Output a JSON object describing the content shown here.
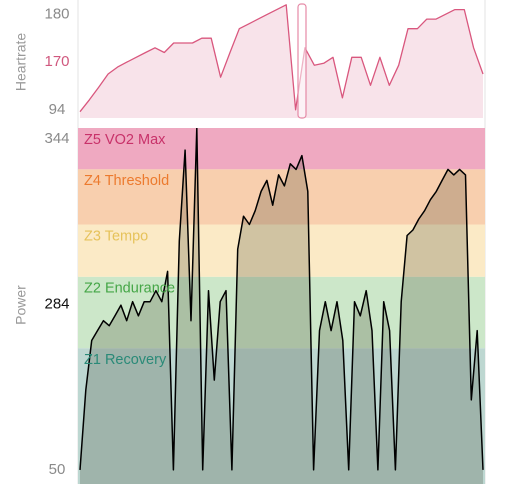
{
  "chart_data": [
    {
      "type": "area",
      "ylabel": "Heartrate",
      "scale": "piecewise",
      "ylim": [
        81,
        183
      ],
      "yticks": [
        94,
        170,
        180
      ],
      "grid": false,
      "color": "#d9577e",
      "fill": "#f8e3ea",
      "values": [
        91,
        110,
        130,
        151,
        162,
        170,
        171,
        172,
        173,
        172,
        174,
        174,
        174,
        175,
        175,
        146,
        172,
        177,
        178,
        179,
        180,
        181,
        182,
        94,
        173,
        165,
        168,
        171,
        113,
        171,
        171,
        133,
        171,
        133,
        165,
        177,
        177,
        179,
        179,
        180,
        181,
        181,
        173,
        151
      ]
    },
    {
      "type": "area",
      "ylabel": "Power",
      "scale": "piecewise",
      "ylim": [
        30,
        348
      ],
      "yticks": [
        50,
        284,
        344
      ],
      "grid": false,
      "color": "#000000",
      "fill": "rgba(40,40,20,0.2)",
      "zones": [
        {
          "name": "Z5 VO2 Max",
          "from": 333,
          "to": 348,
          "color": "#efa9c1",
          "label_color": "#c8326a"
        },
        {
          "name": "Z4 Threshold",
          "from": 313,
          "to": 333,
          "color": "#f8cfae",
          "label_color": "#ec7a2e"
        },
        {
          "name": "Z3 Tempo",
          "from": 294,
          "to": 313,
          "color": "#fbeac6",
          "label_color": "#e6c25a"
        },
        {
          "name": "Z2 Endurance",
          "from": 222,
          "to": 294,
          "color": "#cce7c9",
          "label_color": "#45a647"
        },
        {
          "name": "Z1 Recovery",
          "from": 30,
          "to": 222,
          "color": "#bdd7d1",
          "label_color": "#2a8a78"
        }
      ],
      "values": [
        50,
        163,
        233,
        247,
        261,
        254,
        268,
        283,
        261,
        285,
        268,
        285,
        285,
        289,
        285,
        296,
        50,
        307,
        340,
        261,
        348,
        50,
        289,
        177,
        285,
        289,
        50,
        304,
        316,
        313,
        318,
        325,
        329,
        320,
        331,
        327,
        335,
        333,
        338,
        325,
        50,
        247,
        285,
        247,
        285,
        233,
        50,
        285,
        268,
        289,
        247,
        50,
        285,
        247,
        50,
        285,
        309,
        311,
        315,
        318,
        322,
        325,
        329,
        333,
        331,
        333,
        331,
        149,
        247,
        50
      ]
    }
  ]
}
